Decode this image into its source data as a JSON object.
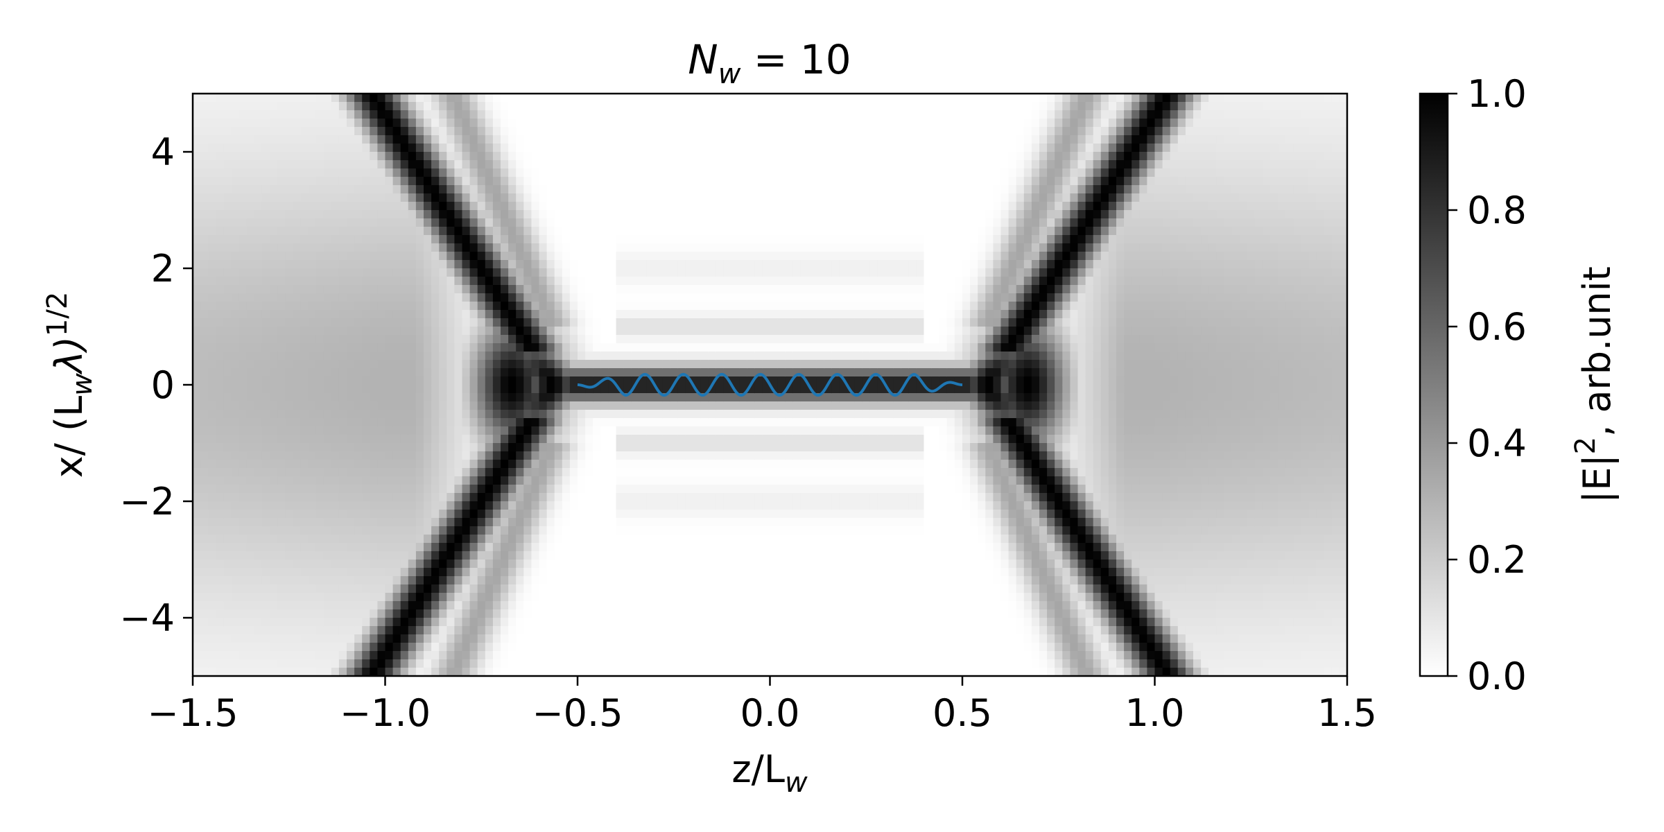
{
  "chart_data": {
    "type": "heatmap",
    "title_main": "N",
    "title_sub": "w",
    "title_rest": " = 10",
    "xlabel_main": "z/L",
    "xlabel_sub": "w",
    "ylabel_parts": {
      "a": "x/ (L",
      "sub": "w",
      "b": "λ)",
      "sup": "1/2"
    },
    "colorbar_label_parts": {
      "a": "|E|",
      "sup": "2",
      "b": ", arb.unit"
    },
    "xlim": [
      -1.5,
      1.5
    ],
    "ylim": [
      -5,
      5
    ],
    "xticks": [
      -1.5,
      -1.0,
      -0.5,
      0.0,
      0.5,
      1.0,
      1.5
    ],
    "xtick_labels": [
      "−1.5",
      "−1.0",
      "−0.5",
      "0.0",
      "0.5",
      "1.0",
      "1.5"
    ],
    "yticks": [
      4,
      2,
      0,
      -2,
      -4
    ],
    "ytick_labels": [
      "4",
      "2",
      "0",
      "−2",
      "−4"
    ],
    "colorbar_range": [
      0,
      1
    ],
    "colorbar_ticks": [
      1.0,
      0.8,
      0.6,
      0.4,
      0.2,
      0.0
    ],
    "colorbar_tick_labels": [
      "1.0",
      "0.8",
      "0.6",
      "0.4",
      "0.2",
      "0.0"
    ],
    "colormap": "gray_r",
    "grid": false,
    "undulator_trajectory": {
      "z_start": -0.5,
      "z_end": 0.5,
      "periods": 10,
      "amplitude": 0.18,
      "color": "#1f77b4"
    },
    "intensity_features": [
      {
        "z": -0.67,
        "x": 0,
        "level": 1.0
      },
      {
        "z": 0.67,
        "x": 0,
        "level": 1.0
      },
      {
        "z": 0,
        "x": 0,
        "level": 0.9
      },
      {
        "z": -1.0,
        "x": 4.5,
        "level": 1.0
      },
      {
        "z": -1.0,
        "x": -4.5,
        "level": 1.0
      },
      {
        "z": 1.0,
        "x": 4.5,
        "level": 1.0
      },
      {
        "z": 1.0,
        "x": -4.5,
        "level": 1.0
      }
    ]
  }
}
